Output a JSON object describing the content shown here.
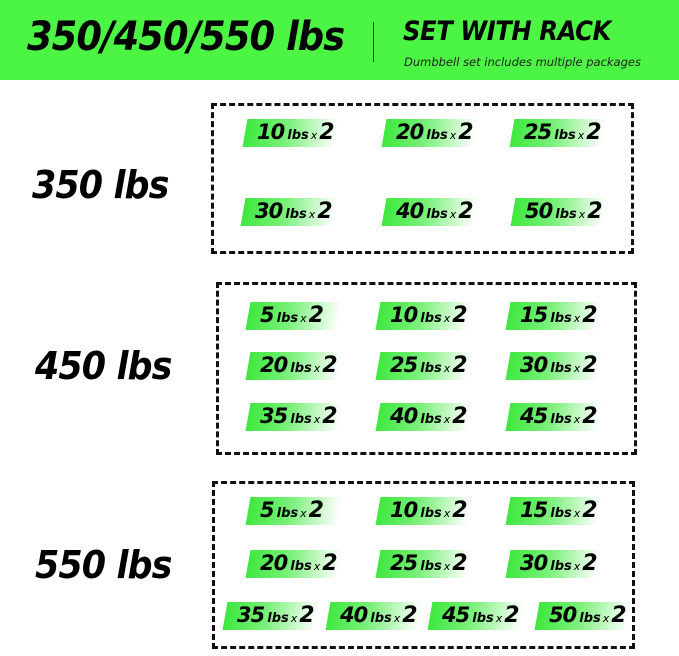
{
  "header": {
    "title": "350/450/550 lbs",
    "subtitle": "SET WITH RACK",
    "note": "Dumbbell set includes multiple packages",
    "banner_color": "#4cf543"
  },
  "sets": [
    {
      "label": "350 lbs",
      "items": [
        {
          "weight": "10",
          "unit": "lbs",
          "x": "x",
          "qty": "2"
        },
        {
          "weight": "20",
          "unit": "lbs",
          "x": "x",
          "qty": "2"
        },
        {
          "weight": "25",
          "unit": "lbs",
          "x": "x",
          "qty": "2"
        },
        {
          "weight": "30",
          "unit": "lbs",
          "x": "x",
          "qty": "2"
        },
        {
          "weight": "40",
          "unit": "lbs",
          "x": "x",
          "qty": "2"
        },
        {
          "weight": "50",
          "unit": "lbs",
          "x": "x",
          "qty": "2"
        }
      ]
    },
    {
      "label": "450 lbs",
      "items": [
        {
          "weight": "5",
          "unit": "lbs",
          "x": "x",
          "qty": "2"
        },
        {
          "weight": "10",
          "unit": "lbs",
          "x": "x",
          "qty": "2"
        },
        {
          "weight": "15",
          "unit": "lbs",
          "x": "x",
          "qty": "2"
        },
        {
          "weight": "20",
          "unit": "lbs",
          "x": "x",
          "qty": "2"
        },
        {
          "weight": "25",
          "unit": "lbs",
          "x": "x",
          "qty": "2"
        },
        {
          "weight": "30",
          "unit": "lbs",
          "x": "x",
          "qty": "2"
        },
        {
          "weight": "35",
          "unit": "lbs",
          "x": "x",
          "qty": "2"
        },
        {
          "weight": "40",
          "unit": "lbs",
          "x": "x",
          "qty": "2"
        },
        {
          "weight": "45",
          "unit": "lbs",
          "x": "x",
          "qty": "2"
        }
      ]
    },
    {
      "label": "550 lbs",
      "items": [
        {
          "weight": "5",
          "unit": "lbs",
          "x": "x",
          "qty": "2"
        },
        {
          "weight": "10",
          "unit": "lbs",
          "x": "x",
          "qty": "2"
        },
        {
          "weight": "15",
          "unit": "lbs",
          "x": "x",
          "qty": "2"
        },
        {
          "weight": "20",
          "unit": "lbs",
          "x": "x",
          "qty": "2"
        },
        {
          "weight": "25",
          "unit": "lbs",
          "x": "x",
          "qty": "2"
        },
        {
          "weight": "30",
          "unit": "lbs",
          "x": "x",
          "qty": "2"
        },
        {
          "weight": "35",
          "unit": "lbs",
          "x": "x",
          "qty": "2"
        },
        {
          "weight": "40",
          "unit": "lbs",
          "x": "x",
          "qty": "2"
        },
        {
          "weight": "45",
          "unit": "lbs",
          "x": "x",
          "qty": "2"
        },
        {
          "weight": "50",
          "unit": "lbs",
          "x": "x",
          "qty": "2"
        }
      ]
    }
  ]
}
